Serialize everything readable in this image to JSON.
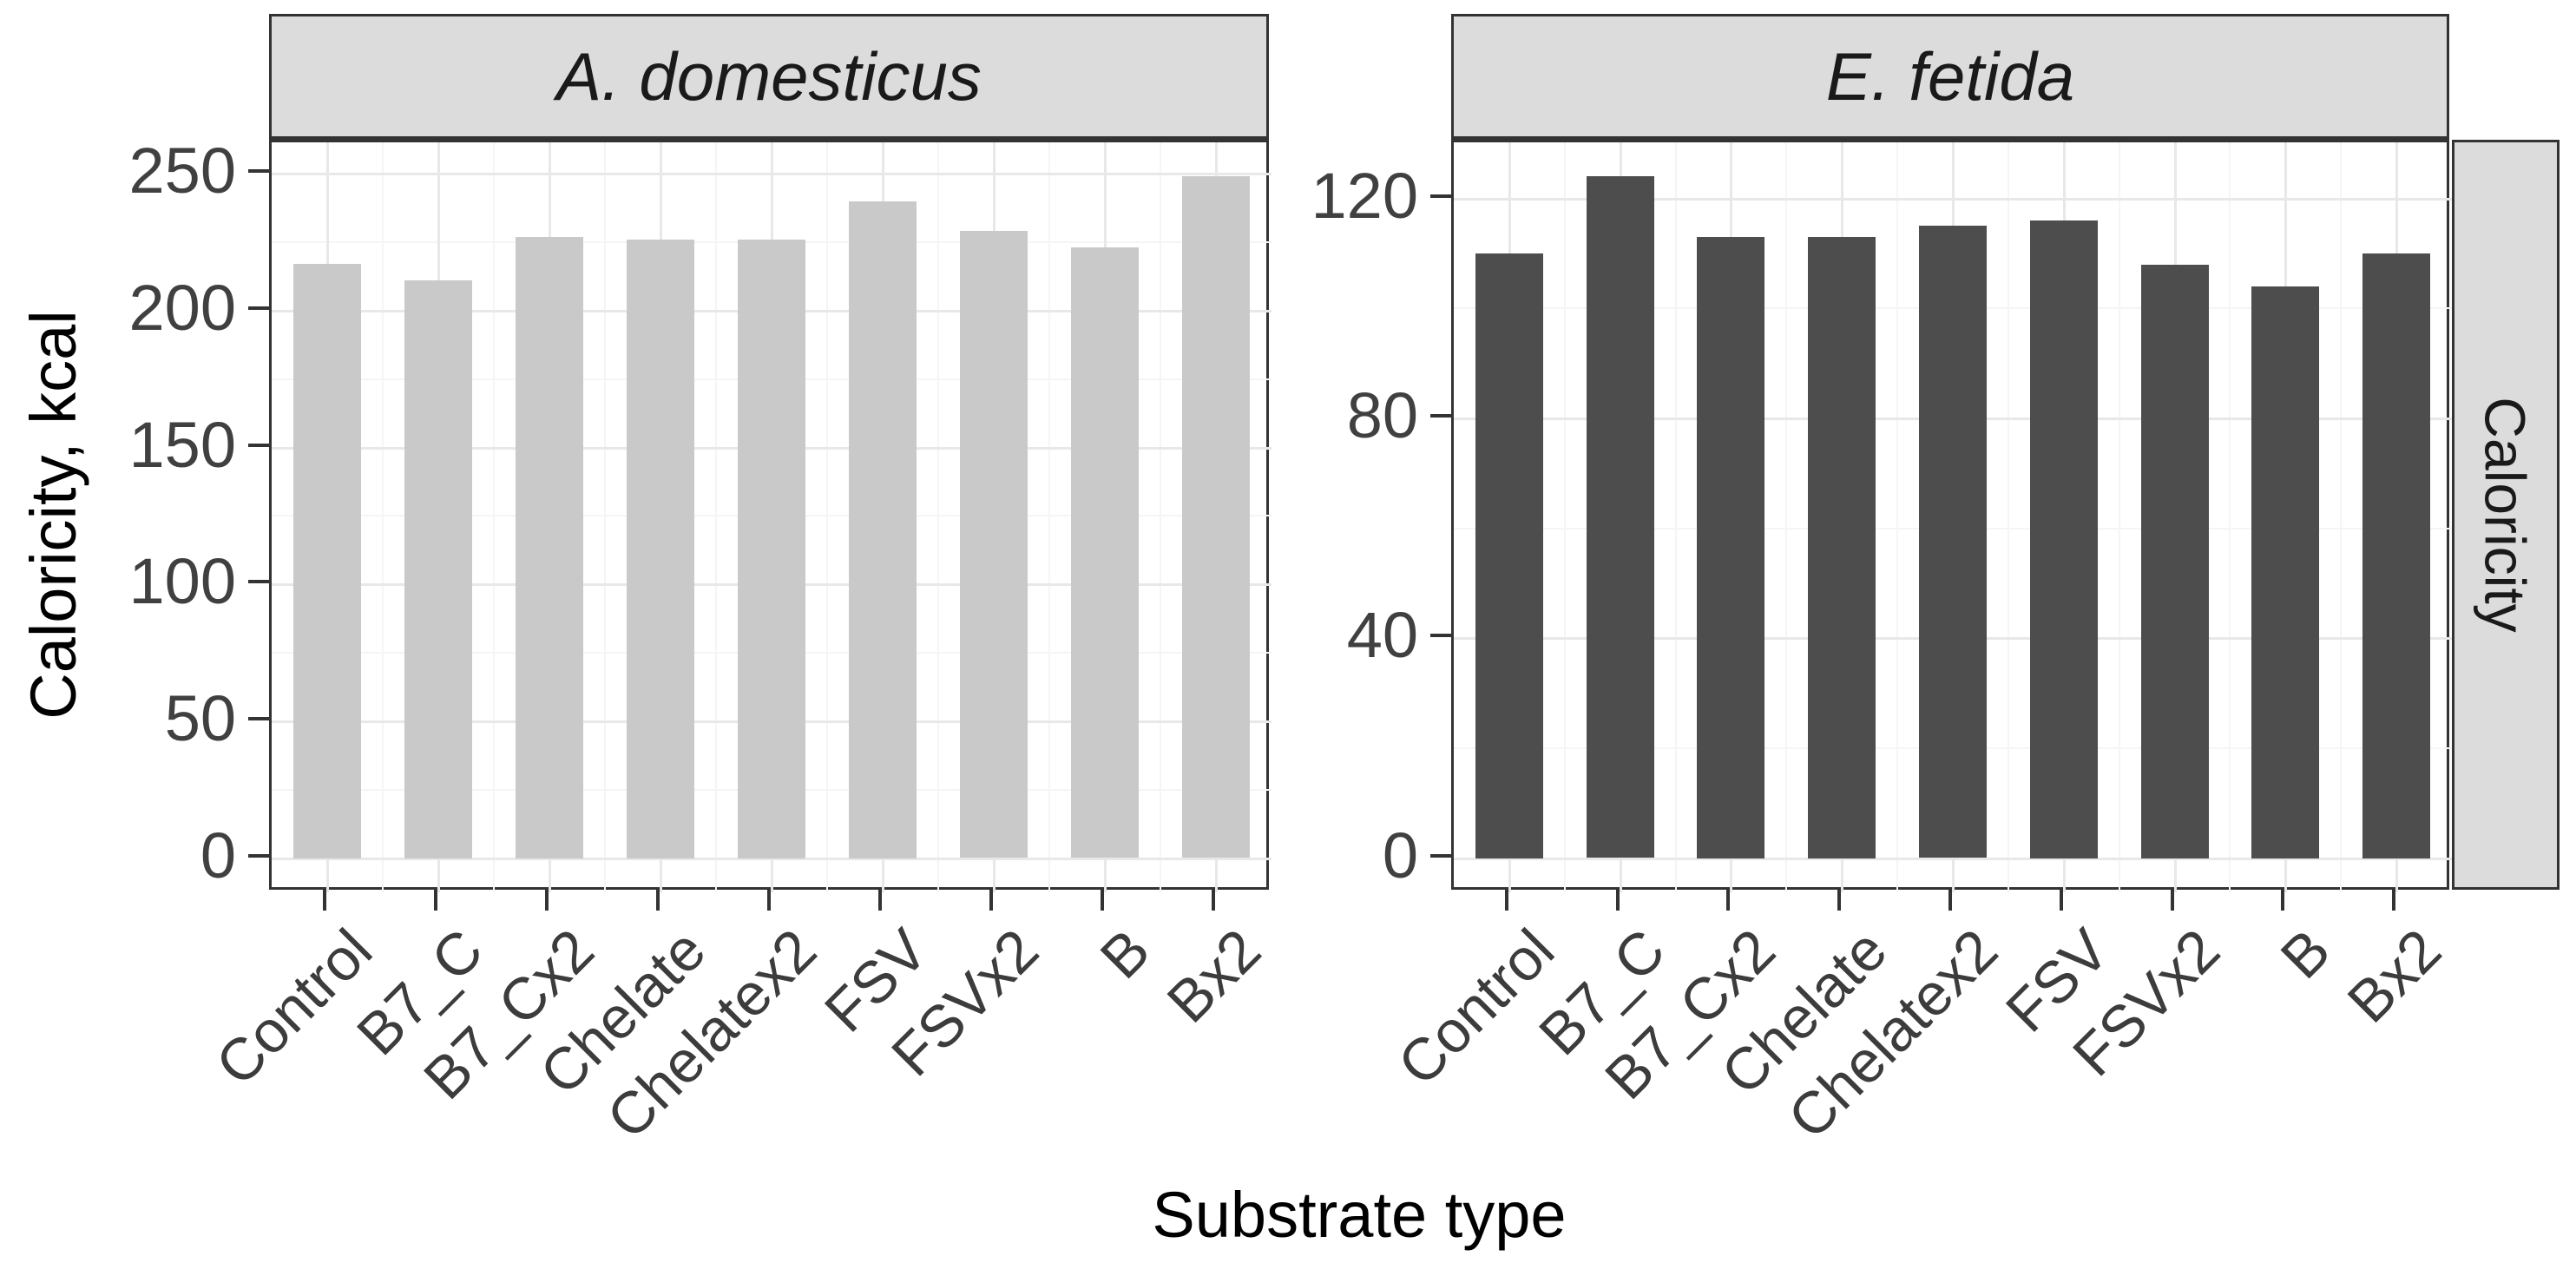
{
  "chart_data": {
    "type": "bar",
    "title": "",
    "xlabel": "Substrate type",
    "ylabel": "Caloricity, kcal",
    "right_strip_label": "Caloricity",
    "grid": "on",
    "legend_position": "none",
    "categories": [
      "Control",
      "B7_C",
      "B7_Cx2",
      "Chelate",
      "Chelatex2",
      "FSV",
      "FSVx2",
      "B",
      "Bx2"
    ],
    "facets": [
      {
        "label": "A. domesticus",
        "bar_color": "#c9c9c9",
        "values": [
          217,
          211,
          227,
          226,
          226,
          240,
          229,
          223,
          249
        ],
        "y_ticks": [
          0,
          50,
          100,
          150,
          200,
          250
        ],
        "y_minor_ticks": [
          25,
          75,
          125,
          175,
          225
        ],
        "ylim": [
          0,
          250
        ]
      },
      {
        "label": "E. fetida",
        "bar_color": "#4d4d4d",
        "values": [
          110,
          124,
          113,
          113,
          115,
          116,
          108,
          104,
          110
        ],
        "y_ticks": [
          0,
          40,
          80,
          120
        ],
        "y_minor_ticks": [
          20,
          60,
          100
        ],
        "ylim": [
          0,
          120
        ]
      }
    ],
    "colors": {
      "strip_fill": "#dcdcdc",
      "panel_border": "#333333",
      "grid_major": "#e8e8e8",
      "grid_minor": "#f5f5f5",
      "tick_label": "#404040",
      "bar_light": "#c9c9c9",
      "bar_dark": "#4d4d4d"
    }
  }
}
